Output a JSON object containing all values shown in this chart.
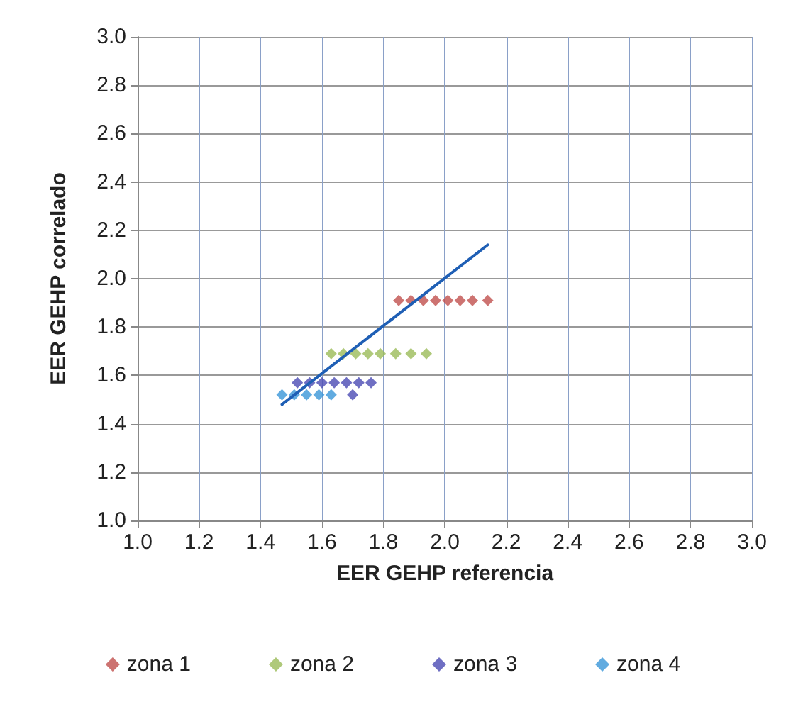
{
  "chart_data": {
    "type": "scatter",
    "xlabel": "EER GEHP referencia",
    "ylabel": "EER GEHP correlado",
    "xlim": [
      1.0,
      3.0
    ],
    "ylim": [
      1.0,
      3.0
    ],
    "xticks": [
      {
        "value": 1.0,
        "label": "1.0"
      },
      {
        "value": 1.2,
        "label": "1.2"
      },
      {
        "value": 1.4,
        "label": "1.4"
      },
      {
        "value": 1.6,
        "label": "1.6"
      },
      {
        "value": 1.8,
        "label": "1.8"
      },
      {
        "value": 2.0,
        "label": "2.0"
      },
      {
        "value": 2.2,
        "label": "2.2"
      },
      {
        "value": 2.4,
        "label": "2.4"
      },
      {
        "value": 2.6,
        "label": "2.6"
      },
      {
        "value": 2.8,
        "label": "2.8"
      },
      {
        "value": 3.0,
        "label": "3.0"
      }
    ],
    "yticks": [
      {
        "value": 1.0,
        "label": "1.0"
      },
      {
        "value": 1.2,
        "label": "1.2"
      },
      {
        "value": 1.4,
        "label": "1.4"
      },
      {
        "value": 1.6,
        "label": "1.6"
      },
      {
        "value": 1.8,
        "label": "1.8"
      },
      {
        "value": 2.0,
        "label": "2.0"
      },
      {
        "value": 2.2,
        "label": "2.2"
      },
      {
        "value": 2.4,
        "label": "2.4"
      },
      {
        "value": 2.6,
        "label": "2.6"
      },
      {
        "value": 2.8,
        "label": "2.8"
      },
      {
        "value": 3.0,
        "label": "3.0"
      }
    ],
    "grid": true,
    "legend": "bottom",
    "marker": "diamond",
    "series": [
      {
        "name": "zona 1",
        "color": "#c0504d",
        "x": [
          1.85,
          1.89,
          1.93,
          1.97,
          2.01,
          2.05,
          2.09,
          2.14
        ],
        "values": [
          1.91,
          1.91,
          1.91,
          1.91,
          1.91,
          1.91,
          1.91,
          1.91
        ]
      },
      {
        "name": "zona 2",
        "color": "#9bbb59",
        "x": [
          1.63,
          1.67,
          1.71,
          1.75,
          1.79,
          1.84,
          1.89,
          1.94
        ],
        "values": [
          1.69,
          1.69,
          1.69,
          1.69,
          1.69,
          1.69,
          1.69,
          1.69
        ]
      },
      {
        "name": "zona 3",
        "color": "#4b4bb4",
        "x": [
          1.52,
          1.56,
          1.6,
          1.64,
          1.68,
          1.72,
          1.76,
          1.7
        ],
        "values": [
          1.57,
          1.57,
          1.57,
          1.57,
          1.57,
          1.57,
          1.57,
          1.52
        ]
      },
      {
        "name": "zona 4",
        "color": "#3a96d8",
        "x": [
          1.47,
          1.51,
          1.55,
          1.59,
          1.63
        ],
        "values": [
          1.52,
          1.52,
          1.52,
          1.52,
          1.52
        ]
      },
      {
        "type": "line",
        "color": "#1f5fb5",
        "marker": "none",
        "x": [
          1.47,
          2.14
        ],
        "values": [
          1.48,
          2.14
        ]
      }
    ]
  }
}
